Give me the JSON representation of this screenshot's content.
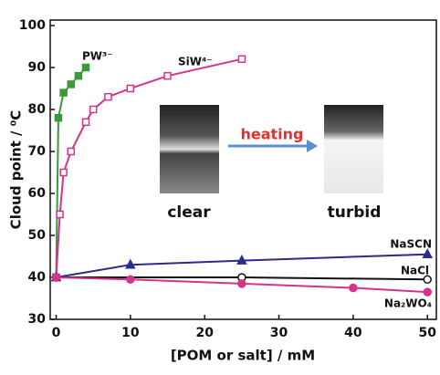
{
  "chart_data": {
    "type": "line",
    "y_label": "Cloud point / ⁰C",
    "x_label": "[POM or salt] / mM",
    "xlim": [
      -0.8,
      51.2
    ],
    "xticks": [
      0,
      10,
      20,
      30,
      40,
      50
    ],
    "ylim": [
      30,
      101.3
    ],
    "yticks": [
      30,
      40,
      50,
      60,
      70,
      80,
      90,
      100
    ],
    "series": [
      {
        "name": "PW³⁻",
        "color": "#3a9a3a",
        "marker": "square",
        "x": [
          0,
          0.3,
          1,
          2,
          3,
          4
        ],
        "values": [
          40,
          78,
          84,
          86,
          88,
          90
        ]
      },
      {
        "name": "SiW⁴⁻",
        "color": "#d6338a",
        "marker": "square-open",
        "x": [
          0,
          0.5,
          1,
          2,
          4,
          5,
          7,
          10,
          15,
          25
        ],
        "values": [
          40,
          55,
          65,
          70,
          77,
          80,
          83,
          85,
          88,
          92
        ]
      },
      {
        "name": "NaSCN",
        "color": "#2b2b8c",
        "marker": "triangle",
        "x": [
          0,
          10,
          25,
          50
        ],
        "values": [
          40,
          43,
          44,
          45.5
        ]
      },
      {
        "name": "NaCl",
        "color": "#111111",
        "marker": "circle-open",
        "x": [
          0,
          25,
          50
        ],
        "values": [
          40,
          40,
          39.5
        ]
      },
      {
        "name": "Na₂WO₄",
        "color": "#d6338a",
        "marker": "circle",
        "x": [
          0,
          10,
          25,
          40,
          50
        ],
        "values": [
          40,
          39.5,
          38.5,
          37.5,
          36.5
        ]
      }
    ],
    "annotations": {
      "left": "clear",
      "arrow": "heating",
      "right": "turbid"
    }
  }
}
